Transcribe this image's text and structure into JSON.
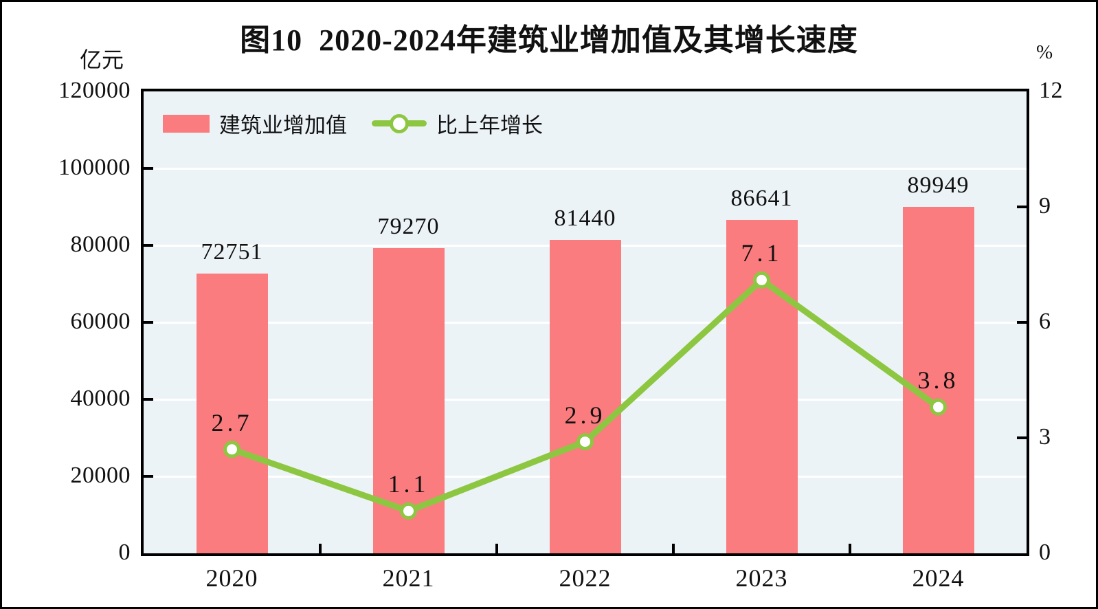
{
  "chart_data": {
    "type": "bar",
    "title": "图10  2020-2024年建筑业增加值及其增长速度",
    "categories": [
      "2020",
      "2021",
      "2022",
      "2023",
      "2024"
    ],
    "series": [
      {
        "name": "建筑业增加值",
        "type": "bar",
        "axis": "left",
        "color": "#FB7C7E",
        "values": [
          72751,
          79270,
          81440,
          86641,
          89949
        ],
        "value_labels": [
          "72751",
          "79270",
          "81440",
          "86641",
          "89949"
        ]
      },
      {
        "name": "比上年增长",
        "type": "line",
        "axis": "right",
        "color": "#8DC742",
        "marker": "circle-white-fill",
        "values": [
          2.7,
          1.1,
          2.9,
          7.1,
          3.8
        ],
        "value_labels": [
          "2.7",
          "1.1",
          "2.9",
          "7.1",
          "3.8"
        ]
      }
    ],
    "left_axis": {
      "unit": "亿元",
      "min": 0,
      "max": 120000,
      "tick_step": 20000,
      "tick_values": [
        120000,
        100000,
        80000,
        60000,
        40000,
        20000,
        0
      ],
      "tick_labels": [
        "120000",
        "100000",
        "80000",
        "60000",
        "40000",
        "20000",
        "0"
      ]
    },
    "right_axis": {
      "unit": "%",
      "min": 0,
      "max": 12,
      "tick_step": 3,
      "tick_values": [
        12,
        9,
        6,
        3,
        0
      ],
      "tick_labels": [
        "12",
        "9",
        "6",
        "3",
        "0"
      ]
    },
    "gridlines": {
      "orientation": "horizontal",
      "at_left_axis_values": [
        20000,
        40000,
        60000,
        80000,
        100000
      ],
      "color": "#FFFFFF"
    },
    "legend_position": "top-left-inside-plot",
    "plot_background": "#ECF3F7",
    "axis_border_color": "#000000"
  }
}
